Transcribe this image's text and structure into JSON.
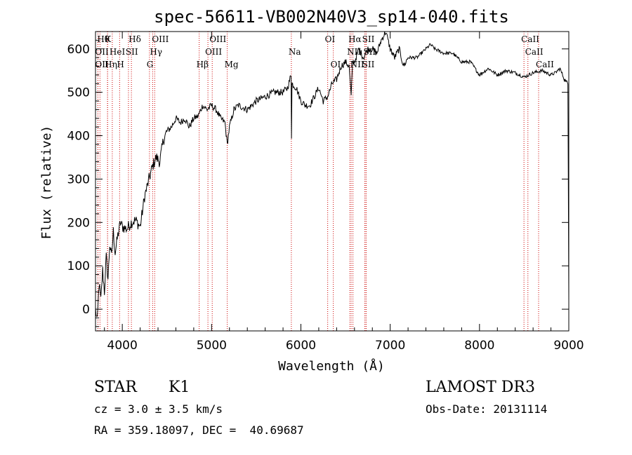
{
  "chart_data": {
    "type": "line",
    "title": "spec-56611-VB002N40V3_sp14-040.fits",
    "xlabel": "Wavelength (Å)",
    "ylabel": "Flux (relative)",
    "xlim": [
      3700,
      9000
    ],
    "ylim": [
      -50,
      640
    ],
    "xticks": [
      4000,
      5000,
      6000,
      7000,
      8000,
      9000
    ],
    "yticks": [
      0,
      100,
      200,
      300,
      400,
      500,
      600
    ],
    "series": [
      {
        "name": "spectrum",
        "x": [
          3700,
          3720,
          3740,
          3760,
          3780,
          3800,
          3820,
          3840,
          3860,
          3880,
          3900,
          3920,
          3950,
          3980,
          4000,
          4050,
          4100,
          4150,
          4200,
          4250,
          4300,
          4340,
          4380,
          4420,
          4460,
          4500,
          4550,
          4600,
          4650,
          4700,
          4750,
          4800,
          4850,
          4900,
          4950,
          5000,
          5050,
          5100,
          5150,
          5175,
          5200,
          5250,
          5300,
          5400,
          5500,
          5600,
          5700,
          5800,
          5850,
          5890,
          5895,
          5900,
          5950,
          6000,
          6050,
          6100,
          6150,
          6200,
          6250,
          6300,
          6350,
          6400,
          6450,
          6500,
          6540,
          6563,
          6580,
          6600,
          6650,
          6700,
          6750,
          6800,
          6850,
          6900,
          6950,
          7000,
          7050,
          7100,
          7150,
          7200,
          7300,
          7400,
          7450,
          7500,
          7600,
          7700,
          7800,
          7900,
          8000,
          8100,
          8200,
          8300,
          8400,
          8500,
          8550,
          8600,
          8700,
          8800,
          8850,
          8900,
          8950,
          8990,
          9000
        ],
        "y": [
          0,
          -30,
          60,
          20,
          90,
          40,
          120,
          70,
          150,
          120,
          180,
          130,
          170,
          200,
          190,
          185,
          200,
          205,
          190,
          260,
          300,
          330,
          350,
          340,
          390,
          410,
          420,
          440,
          430,
          440,
          420,
          440,
          445,
          470,
          460,
          470,
          460,
          440,
          430,
          380,
          420,
          460,
          470,
          460,
          480,
          490,
          500,
          500,
          510,
          540,
          400,
          520,
          510,
          480,
          470,
          470,
          490,
          510,
          480,
          490,
          520,
          530,
          560,
          570,
          560,
          490,
          570,
          570,
          600,
          580,
          600,
          600,
          590,
          620,
          640,
          600,
          580,
          600,
          560,
          580,
          580,
          600,
          610,
          600,
          590,
          590,
          570,
          570,
          540,
          555,
          540,
          550,
          545,
          535,
          540,
          545,
          550,
          540,
          545,
          555,
          530,
          520,
          20
        ]
      }
    ],
    "line_markers": [
      {
        "wl": 3750,
        "label": "Hθ",
        "row": 0
      },
      {
        "wl": 3835,
        "label": "K",
        "row": 0
      },
      {
        "wl": 4102,
        "label": "Hδ",
        "row": 0
      },
      {
        "wl": 4363,
        "label": "OIII",
        "row": 0
      },
      {
        "wl": 5007,
        "label": "OIII",
        "row": 0
      },
      {
        "wl": 6300,
        "label": "OI",
        "row": 0
      },
      {
        "wl": 6563,
        "label": "Hα",
        "row": 0
      },
      {
        "wl": 6717,
        "label": "SII",
        "row": 0
      },
      {
        "wl": 8498,
        "label": "CaII",
        "row": 0
      },
      {
        "wl": 3727,
        "label": "OII",
        "row": 1
      },
      {
        "wl": 3888,
        "label": "HeI",
        "row": 1
      },
      {
        "wl": 4069,
        "label": "SII",
        "row": 1
      },
      {
        "wl": 4340,
        "label": "Hγ",
        "row": 1
      },
      {
        "wl": 4959,
        "label": "OIII",
        "row": 1
      },
      {
        "wl": 5893,
        "label": "Na",
        "row": 1
      },
      {
        "wl": 6548,
        "label": "NII",
        "row": 1
      },
      {
        "wl": 6731,
        "label": "SII",
        "row": 1
      },
      {
        "wl": 8542,
        "label": "CaII",
        "row": 1
      },
      {
        "wl": 3727,
        "label": "OII",
        "row": 2
      },
      {
        "wl": 3835,
        "label": "Hη",
        "row": 2
      },
      {
        "wl": 3970,
        "label": "H",
        "row": 2
      },
      {
        "wl": 4304,
        "label": "G",
        "row": 2
      },
      {
        "wl": 4861,
        "label": "Hβ",
        "row": 2
      },
      {
        "wl": 5175,
        "label": "Mg",
        "row": 2
      },
      {
        "wl": 6363,
        "label": "OI",
        "row": 2
      },
      {
        "wl": 6583,
        "label": "NII",
        "row": 2
      },
      {
        "wl": 6717,
        "label": "SII",
        "row": 2
      },
      {
        "wl": 8662,
        "label": "CaII",
        "row": 2
      }
    ],
    "colors": {
      "spectrum": "#000000",
      "marker": "#cc0000"
    }
  },
  "footer": {
    "class_label": "STAR",
    "subclass": "K1",
    "survey": "LAMOST DR3",
    "cz": "cz = 3.0 ± 3.5 km/s",
    "obs_date": "Obs-Date: 20131114",
    "coords": "RA = 359.18097, DEC =  40.69687"
  }
}
